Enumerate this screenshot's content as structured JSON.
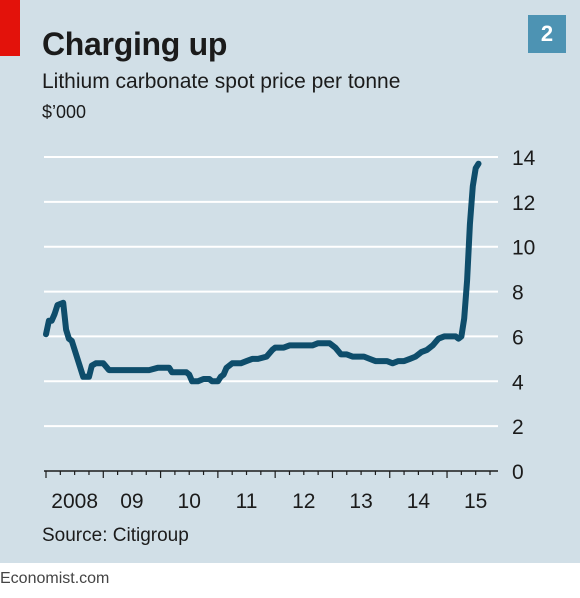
{
  "header": {
    "title": "Charging up",
    "subtitle": "Lithium carbonate spot price per tonne",
    "badge": "2"
  },
  "source": "Source: Citigroup",
  "footer": "Economist.com",
  "colors": {
    "background": "#d1dfe7",
    "accent_red": "#e3120b",
    "line": "#0e4d6b",
    "badge": "#4d93b3",
    "gridline": "#ffffff"
  },
  "chart_data": {
    "type": "line",
    "title": "Charging up",
    "subtitle": "Lithium carbonate spot price per tonne",
    "ylabel": "$’000",
    "xlabel": "",
    "ylim": [
      0,
      14
    ],
    "xlim": [
      2008.0,
      2015.75
    ],
    "grid": true,
    "y_axis_side": "right",
    "yticks": [
      0,
      2,
      4,
      6,
      8,
      10,
      12,
      14
    ],
    "xticks": [
      {
        "x": 2008,
        "label": "2008"
      },
      {
        "x": 2009,
        "label": "09"
      },
      {
        "x": 2010,
        "label": "10"
      },
      {
        "x": 2011,
        "label": "11"
      },
      {
        "x": 2012,
        "label": "12"
      },
      {
        "x": 2013,
        "label": "13"
      },
      {
        "x": 2014,
        "label": "14"
      },
      {
        "x": 2015,
        "label": "15"
      }
    ],
    "series": [
      {
        "x": [
          2008.0,
          2008.05,
          2008.1,
          2008.15,
          2008.2,
          2008.3,
          2008.35,
          2008.4,
          2008.45,
          2008.55,
          2008.65,
          2008.75,
          2008.8,
          2008.87,
          2008.95,
          2009.0,
          2009.1,
          2009.2,
          2009.3,
          2009.4,
          2009.45,
          2009.5,
          2009.6,
          2009.8,
          2009.95,
          2010.0,
          2010.05,
          2010.15,
          2010.2,
          2010.3,
          2010.35,
          2010.45,
          2010.5,
          2010.55,
          2010.65,
          2010.75,
          2010.85,
          2010.9,
          2011.0,
          2011.05,
          2011.1,
          2011.15,
          2011.25,
          2011.3,
          2011.4,
          2011.5,
          2011.6,
          2011.7,
          2011.85,
          2011.95,
          2012.0,
          2012.05,
          2012.15,
          2012.25,
          2012.35,
          2012.45,
          2012.55,
          2012.65,
          2012.75,
          2012.85,
          2012.95,
          2013.05,
          2013.15,
          2013.25,
          2013.35,
          2013.45,
          2013.55,
          2013.65,
          2013.75,
          2013.85,
          2013.95,
          2014.05,
          2014.15,
          2014.25,
          2014.35,
          2014.45,
          2014.55,
          2014.65,
          2014.75,
          2014.85,
          2014.95,
          2015.05,
          2015.15,
          2015.2,
          2015.25,
          2015.3,
          2015.35,
          2015.4,
          2015.45,
          2015.5,
          2015.55
        ],
        "values": [
          6.1,
          6.7,
          6.7,
          7.0,
          7.4,
          7.5,
          6.3,
          5.9,
          5.8,
          5.0,
          4.2,
          4.2,
          4.7,
          4.8,
          4.8,
          4.8,
          4.5,
          4.5,
          4.5,
          4.5,
          4.5,
          4.5,
          4.5,
          4.5,
          4.6,
          4.6,
          4.6,
          4.6,
          4.4,
          4.4,
          4.4,
          4.4,
          4.3,
          4.0,
          4.0,
          4.1,
          4.1,
          4.0,
          4.0,
          4.2,
          4.3,
          4.6,
          4.8,
          4.8,
          4.8,
          4.9,
          5.0,
          5.0,
          5.1,
          5.4,
          5.5,
          5.5,
          5.5,
          5.6,
          5.6,
          5.6,
          5.6,
          5.6,
          5.7,
          5.7,
          5.7,
          5.5,
          5.2,
          5.2,
          5.1,
          5.1,
          5.1,
          5.0,
          4.9,
          4.9,
          4.9,
          4.8,
          4.9,
          4.9,
          5.0,
          5.1,
          5.3,
          5.4,
          5.6,
          5.9,
          6.0,
          6.0,
          6.0,
          5.9,
          6.0,
          6.8,
          8.5,
          11.0,
          12.7,
          13.5,
          13.7
        ]
      }
    ]
  }
}
